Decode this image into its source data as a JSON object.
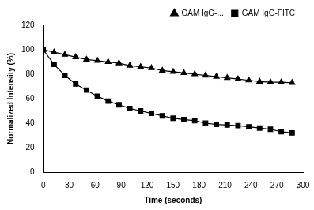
{
  "chart_data": {
    "type": "line",
    "x_label": "Time (seconds)",
    "y_label": "Normalized Intensity (%)",
    "x": [
      0,
      12.5,
      25,
      37.5,
      50,
      62.5,
      75,
      87.5,
      100,
      112.5,
      125,
      137.5,
      150,
      162.5,
      175,
      187.5,
      200,
      212.5,
      225,
      237.5,
      250,
      262.5,
      275,
      287.5
    ],
    "series": [
      {
        "name": "GAM IgG-...",
        "color": "#000000",
        "marker": "triangle",
        "line_style": "solid",
        "values": [
          100,
          98,
          96,
          94,
          92,
          91,
          90,
          89,
          87,
          86,
          85,
          83,
          82,
          81,
          80,
          79,
          78,
          77,
          76,
          75,
          74,
          73.5,
          73.5,
          73
        ]
      },
      {
        "name": "GAM IgG-FITC",
        "color": "#000000",
        "marker": "square",
        "line_style": "solid",
        "values": [
          100,
          88,
          79,
          72,
          67,
          62,
          58,
          55,
          52,
          50,
          48,
          46,
          44,
          43,
          42,
          40,
          39,
          38.5,
          38,
          37,
          36,
          35,
          33,
          32
        ]
      }
    ],
    "xlim": [
      0,
      300
    ],
    "xticks": [
      0,
      30,
      60,
      90,
      120,
      150,
      180,
      210,
      240,
      270,
      300
    ],
    "ylim": [
      0,
      120
    ],
    "yticks": [
      0,
      20,
      40,
      60,
      80,
      100,
      120
    ],
    "grid": false,
    "legend": "top-right"
  }
}
